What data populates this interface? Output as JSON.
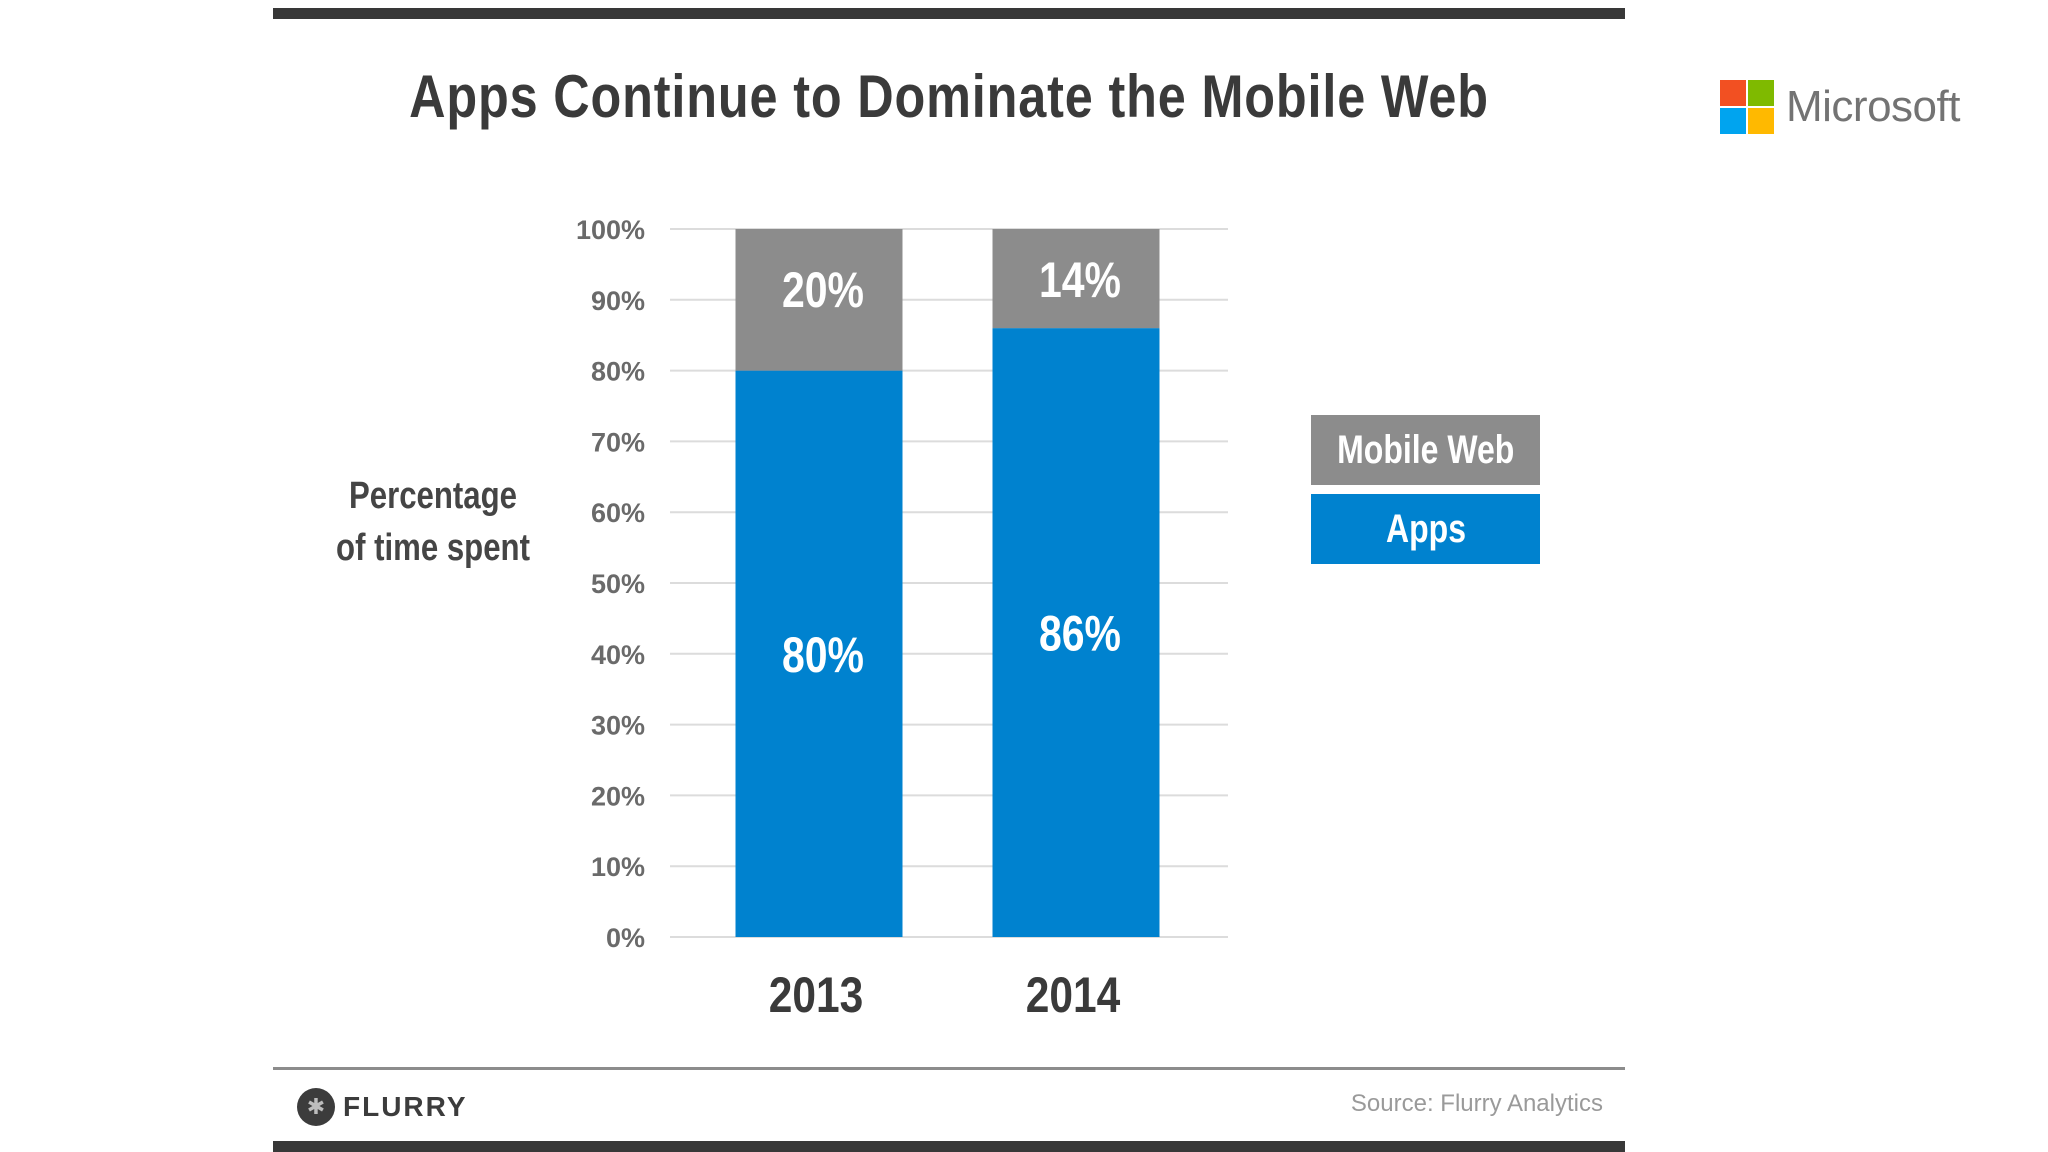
{
  "colors": {
    "mobile_web": "#8c8c8c",
    "apps": "#0082cf",
    "gridline": "#dcdcdc"
  },
  "chart_data": {
    "type": "bar",
    "stacked": true,
    "title": "Apps Continue to Dominate the Mobile Web",
    "ylabel": [
      "Percentage",
      "of time spent"
    ],
    "xlabel": "",
    "categories": [
      "2013",
      "2014"
    ],
    "series": [
      {
        "name": "Apps",
        "values": [
          80,
          86
        ],
        "labels": [
          "80%",
          "86%"
        ]
      },
      {
        "name": "Mobile Web",
        "values": [
          20,
          14
        ],
        "labels": [
          "20%",
          "14%"
        ]
      }
    ],
    "ylim": [
      0,
      100
    ],
    "yticks": [
      "0%",
      "10%",
      "20%",
      "30%",
      "40%",
      "50%",
      "60%",
      "70%",
      "80%",
      "90%",
      "100%"
    ],
    "grid": true,
    "legend": [
      "Mobile Web",
      "Apps"
    ]
  },
  "footer": {
    "brand": "FLURRY",
    "source": "Source: Flurry Analytics"
  },
  "corner_logo": {
    "text": "Microsoft",
    "colors": [
      "#f25022",
      "#7fba00",
      "#00a4ef",
      "#ffb900"
    ]
  }
}
